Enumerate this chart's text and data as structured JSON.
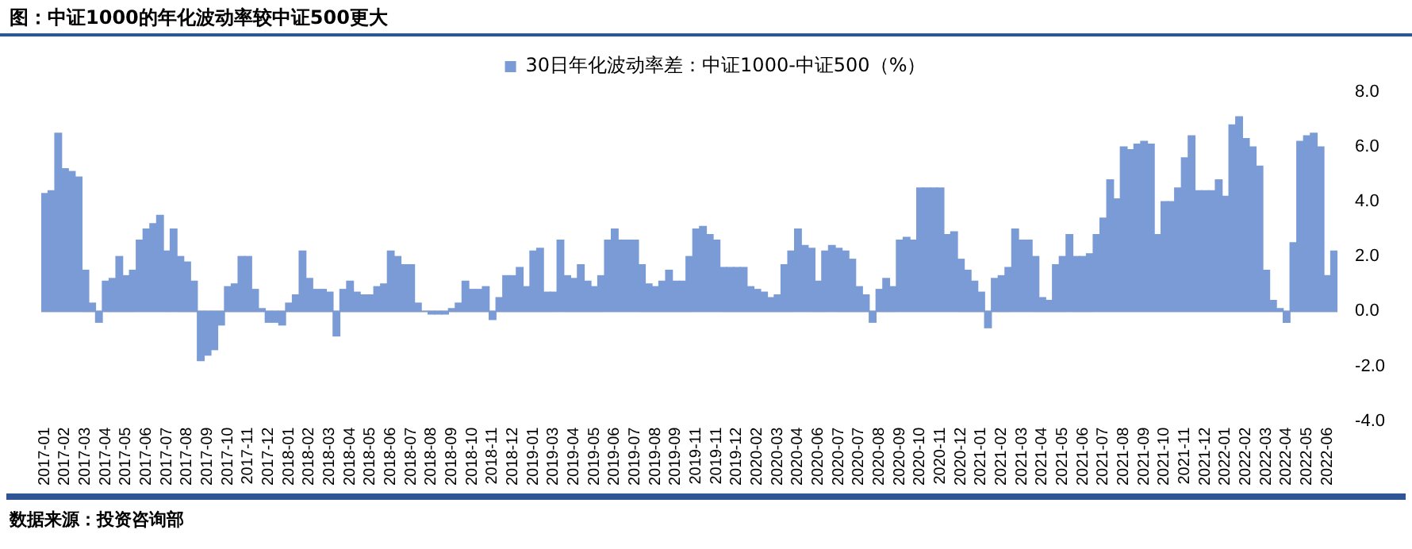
{
  "chart_data": {
    "type": "bar",
    "title": "图：中证1000的年化波动率较中证500更大",
    "categories": [
      "2017-01",
      null,
      null,
      "2017-02",
      null,
      null,
      "2017-03",
      null,
      null,
      "2017-04",
      null,
      null,
      "2017-05",
      null,
      null,
      "2017-06",
      null,
      null,
      "2017-07",
      null,
      null,
      "2017-08",
      null,
      null,
      "2017-09",
      null,
      null,
      "2017-10",
      null,
      null,
      "2017-11",
      null,
      null,
      "2017-12",
      null,
      null,
      "2018-01",
      null,
      null,
      "2018-02",
      null,
      null,
      "2018-03",
      null,
      null,
      "2018-04",
      null,
      null,
      "2018-05",
      null,
      null,
      "2018-06",
      null,
      null,
      "2018-07",
      null,
      null,
      "2018-08",
      null,
      null,
      "2018-09",
      null,
      null,
      "2018-10",
      null,
      null,
      "2018-11",
      null,
      null,
      "2018-12",
      null,
      null,
      "2019-01",
      null,
      null,
      "2019-03",
      null,
      null,
      "2019-04",
      null,
      null,
      "2019-05",
      null,
      null,
      "2019-06",
      null,
      null,
      "2019-07",
      null,
      null,
      "2019-08",
      null,
      null,
      "2019-09",
      null,
      null,
      "2019-11",
      null,
      null,
      "2019-11",
      null,
      null,
      "2019-12",
      null,
      null,
      "2020-02",
      null,
      null,
      "2020-03",
      null,
      null,
      "2020-04",
      null,
      null,
      "2020-06",
      null,
      null,
      "2020-07",
      null,
      null,
      "2020-07",
      null,
      null,
      "2020-08",
      null,
      null,
      "2020-09",
      null,
      null,
      "2020-10",
      null,
      null,
      "2020-11",
      null,
      null,
      "2020-12",
      null,
      null,
      "2021-01",
      null,
      null,
      "2021-02",
      null,
      null,
      "2021-03",
      null,
      null,
      "2021-04",
      null,
      null,
      "2021-05",
      null,
      null,
      "2021-06",
      null,
      null,
      "2021-07",
      null,
      null,
      "2021-08",
      null,
      null,
      "2021-09",
      null,
      null,
      "2021-10",
      null,
      null,
      "2021-11",
      null,
      null,
      "2021-12",
      null,
      null,
      "2022-01",
      null,
      null,
      "2022-02",
      null,
      null,
      "2022-03",
      null,
      null,
      "2022-04",
      null,
      null,
      "2022-05",
      null,
      null,
      "2022-06",
      null
    ],
    "series": [
      {
        "name": "30日年化波动率差：中证1000-中证500（%）",
        "color": "#7a9bd6",
        "values": [
          4.3,
          4.4,
          6.5,
          5.2,
          5.1,
          4.9,
          1.5,
          0.3,
          -0.4,
          1.1,
          1.2,
          2.0,
          1.3,
          1.5,
          2.6,
          3.0,
          3.2,
          3.5,
          2.2,
          3.0,
          2.0,
          1.8,
          1.1,
          -1.8,
          -1.6,
          -1.4,
          -0.5,
          0.9,
          1.0,
          2.0,
          2.0,
          0.8,
          0.1,
          -0.4,
          -0.4,
          -0.5,
          0.3,
          0.6,
          2.2,
          1.2,
          0.8,
          0.8,
          0.7,
          -0.9,
          0.8,
          1.1,
          0.7,
          0.6,
          0.6,
          0.9,
          1.0,
          2.2,
          2.0,
          1.7,
          1.7,
          0.3,
          0.0,
          -0.1,
          -0.1,
          -0.1,
          0.1,
          0.3,
          1.1,
          0.8,
          0.8,
          0.9,
          -0.3,
          0.5,
          1.3,
          1.3,
          1.6,
          0.9,
          2.2,
          2.3,
          0.7,
          0.7,
          2.6,
          1.3,
          1.2,
          1.7,
          1.1,
          0.9,
          1.3,
          2.6,
          3.0,
          2.6,
          2.6,
          2.6,
          1.7,
          1.0,
          0.9,
          1.1,
          1.5,
          1.1,
          1.1,
          2.0,
          3.0,
          3.1,
          2.8,
          2.6,
          1.6,
          1.6,
          1.6,
          1.6,
          0.9,
          0.8,
          0.7,
          0.5,
          0.6,
          1.7,
          2.2,
          3.0,
          2.4,
          2.3,
          1.1,
          2.2,
          2.4,
          2.3,
          2.2,
          1.9,
          0.9,
          0.6,
          -0.4,
          0.8,
          1.2,
          0.9,
          2.6,
          2.7,
          2.6,
          4.5,
          4.5,
          4.5,
          4.5,
          2.8,
          2.9,
          1.9,
          1.5,
          1.1,
          0.7,
          -0.6,
          1.2,
          1.3,
          1.6,
          3.0,
          2.6,
          2.6,
          2.0,
          0.5,
          0.4,
          1.7,
          2.0,
          2.8,
          2.0,
          2.0,
          2.1,
          2.8,
          3.4,
          4.8,
          4.1,
          6.0,
          5.9,
          6.1,
          6.2,
          6.1,
          2.8,
          4.0,
          4.0,
          4.5,
          5.6,
          6.4,
          4.4,
          4.4,
          4.4,
          4.8,
          4.2,
          6.8,
          7.1,
          6.3,
          6.0,
          5.3,
          1.5,
          0.4,
          0.1,
          -0.4,
          2.5,
          6.2,
          6.4,
          6.5,
          6.0,
          1.3,
          2.2
        ]
      }
    ],
    "ylim": [
      -4,
      8
    ],
    "yticks": [
      {
        "value": -4,
        "label": "-4.0"
      },
      {
        "value": -2,
        "label": "-2.0"
      },
      {
        "value": 0,
        "label": "0.0"
      },
      {
        "value": 2,
        "label": "2.0"
      },
      {
        "value": 4,
        "label": "4.0"
      },
      {
        "value": 6,
        "label": "6.0"
      },
      {
        "value": 8,
        "label": "8.0"
      }
    ],
    "legend": "top",
    "annotations": [
      "数据来源：投资咨询部"
    ]
  }
}
